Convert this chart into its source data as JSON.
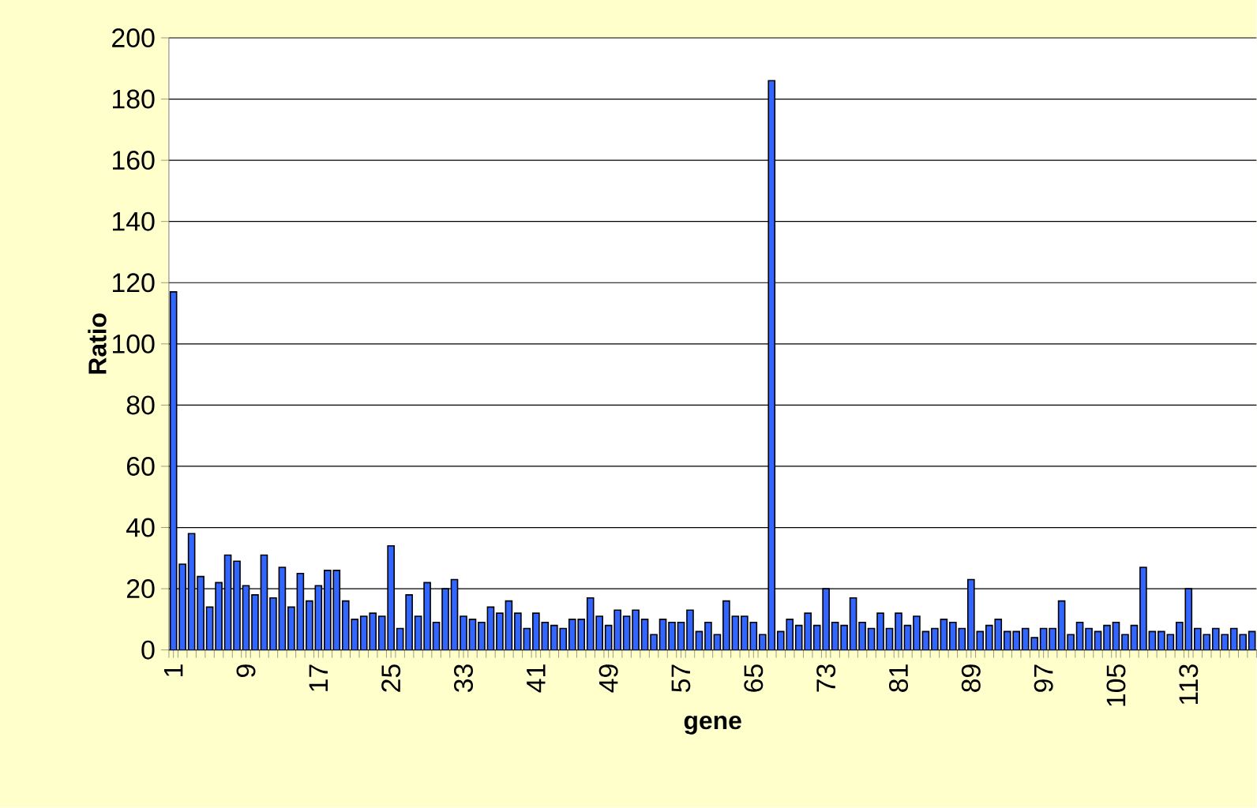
{
  "chart_data": {
    "type": "bar",
    "xlabel": "gene",
    "ylabel": "Ratio",
    "categories": [
      "1",
      null,
      null,
      null,
      null,
      null,
      null,
      null,
      "9",
      null,
      null,
      null,
      null,
      null,
      null,
      null,
      "17",
      null,
      null,
      null,
      null,
      null,
      null,
      null,
      "25",
      null,
      null,
      null,
      null,
      null,
      null,
      null,
      "33",
      null,
      null,
      null,
      null,
      null,
      null,
      null,
      "41",
      null,
      null,
      null,
      null,
      null,
      null,
      null,
      "49",
      null,
      null,
      null,
      null,
      null,
      null,
      null,
      "57",
      null,
      null,
      null,
      null,
      null,
      null,
      null,
      "65",
      null,
      null,
      null,
      null,
      null,
      null,
      null,
      "73",
      null,
      null,
      null,
      null,
      null,
      null,
      null,
      "81",
      null,
      null,
      null,
      null,
      null,
      null,
      null,
      "89",
      null,
      null,
      null,
      null,
      null,
      null,
      null,
      "97",
      null,
      null,
      null,
      null,
      null,
      null,
      null,
      "105",
      null,
      null,
      null,
      null,
      null,
      null,
      null,
      "113",
      null,
      null,
      null,
      null,
      null,
      null,
      null
    ],
    "values": [
      117,
      28,
      38,
      24,
      14,
      22,
      31,
      29,
      21,
      18,
      31,
      17,
      27,
      14,
      25,
      16,
      21,
      26,
      26,
      16,
      10,
      11,
      12,
      11,
      34,
      7,
      18,
      11,
      22,
      9,
      20,
      23,
      11,
      10,
      9,
      14,
      12,
      16,
      12,
      7,
      12,
      9,
      8,
      7,
      10,
      10,
      17,
      11,
      8,
      13,
      11,
      13,
      10,
      5,
      10,
      9,
      9,
      13,
      6,
      9,
      5,
      16,
      11,
      11,
      9,
      5,
      186,
      6,
      10,
      8,
      12,
      8,
      20,
      9,
      8,
      17,
      9,
      7,
      12,
      7,
      12,
      8,
      11,
      6,
      7,
      10,
      9,
      7,
      23,
      6,
      8,
      10,
      6,
      6,
      7,
      4,
      7,
      7,
      16,
      5,
      9,
      7,
      6,
      8,
      9,
      5,
      8,
      27,
      6,
      6,
      5,
      9,
      20,
      7,
      5,
      7,
      5,
      7,
      5,
      6
    ],
    "color": "#3366ff",
    "ylim": [
      0,
      200
    ],
    "yticks": [
      0,
      20,
      40,
      60,
      80,
      100,
      120,
      140,
      160,
      180,
      200
    ],
    "grid": "y"
  }
}
